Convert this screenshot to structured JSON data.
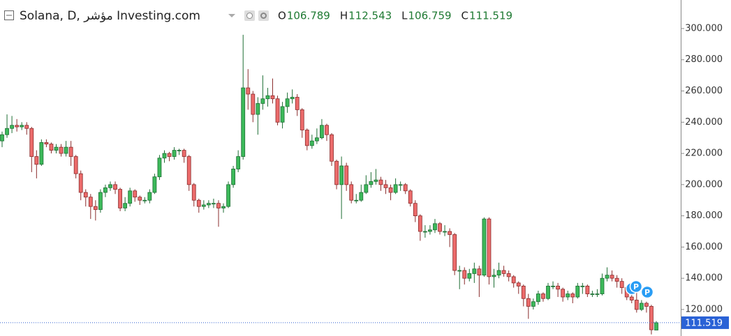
{
  "chart_data": {
    "type": "candlestick",
    "title": "Solana, D, مؤشر Investing.com",
    "ohlc_letters": [
      "O",
      "H",
      "L",
      "C"
    ],
    "up_color": "#3cb95a",
    "down_color": "#ec6b6b",
    "ylim": [
      103,
      318.3
    ],
    "yticks": [
      {
        "value": 120,
        "label": "120.000"
      },
      {
        "value": 140,
        "label": "140.000"
      },
      {
        "value": 160,
        "label": "160.000"
      },
      {
        "value": 180,
        "label": "180.000"
      },
      {
        "value": 200,
        "label": "200.000"
      },
      {
        "value": 220,
        "label": "220.000"
      },
      {
        "value": 240,
        "label": "240.000"
      },
      {
        "value": 260,
        "label": "260.000"
      },
      {
        "value": 280,
        "label": "280.000"
      },
      {
        "value": 300,
        "label": "300.000"
      }
    ],
    "events": [
      {
        "label": "I"
      },
      {
        "label": "P"
      },
      {
        "label": "P"
      }
    ],
    "ohlc": [
      [
        228,
        234,
        224,
        232
      ],
      [
        232,
        245,
        230,
        236
      ],
      [
        236,
        244,
        233,
        238
      ],
      [
        238,
        242,
        234,
        237
      ],
      [
        237,
        240,
        235,
        238
      ],
      [
        238,
        240,
        232,
        236
      ],
      [
        236,
        237,
        208,
        218
      ],
      [
        218,
        222,
        204,
        213
      ],
      [
        213,
        229,
        212,
        227
      ],
      [
        227,
        229,
        224,
        226
      ],
      [
        226,
        227,
        220,
        222
      ],
      [
        222,
        226,
        220,
        224
      ],
      [
        224,
        226,
        218,
        220
      ],
      [
        220,
        228,
        218,
        224
      ],
      [
        224,
        228,
        212,
        218
      ],
      [
        218,
        219,
        204,
        207
      ],
      [
        207,
        209,
        190,
        195
      ],
      [
        195,
        197,
        186,
        192
      ],
      [
        192,
        194,
        178,
        186
      ],
      [
        186,
        190,
        177,
        184
      ],
      [
        184,
        197,
        182,
        195
      ],
      [
        195,
        200,
        192,
        198
      ],
      [
        198,
        202,
        196,
        200
      ],
      [
        200,
        202,
        194,
        197
      ],
      [
        197,
        198,
        183,
        185
      ],
      [
        185,
        192,
        183,
        188
      ],
      [
        188,
        198,
        186,
        196
      ],
      [
        196,
        197,
        189,
        192
      ],
      [
        192,
        193,
        187,
        190
      ],
      [
        190,
        192,
        188,
        190
      ],
      [
        190,
        197,
        188,
        195
      ],
      [
        195,
        207,
        194,
        205
      ],
      [
        205,
        219,
        203,
        217
      ],
      [
        217,
        222,
        214,
        220
      ],
      [
        220,
        221,
        215,
        218
      ],
      [
        218,
        224,
        216,
        222
      ],
      [
        222,
        223,
        219,
        222
      ],
      [
        222,
        223,
        214,
        218
      ],
      [
        218,
        219,
        196,
        200
      ],
      [
        200,
        201,
        186,
        190
      ],
      [
        190,
        191,
        182,
        186
      ],
      [
        186,
        190,
        184,
        187
      ],
      [
        187,
        190,
        185,
        188
      ],
      [
        188,
        191,
        185,
        188
      ],
      [
        188,
        190,
        173,
        185
      ],
      [
        185,
        188,
        182,
        186
      ],
      [
        186,
        202,
        185,
        200
      ],
      [
        200,
        212,
        198,
        210
      ],
      [
        210,
        222,
        208,
        218
      ],
      [
        218,
        296,
        216,
        262
      ],
      [
        262,
        274,
        248,
        258
      ],
      [
        258,
        260,
        240,
        245
      ],
      [
        245,
        256,
        232,
        252
      ],
      [
        252,
        270,
        248,
        255
      ],
      [
        255,
        262,
        250,
        257
      ],
      [
        257,
        268,
        252,
        255
      ],
      [
        255,
        257,
        238,
        240
      ],
      [
        240,
        253,
        236,
        250
      ],
      [
        250,
        259,
        246,
        255
      ],
      [
        255,
        261,
        252,
        256
      ],
      [
        256,
        258,
        244,
        248
      ],
      [
        248,
        249,
        230,
        235
      ],
      [
        235,
        236,
        222,
        225
      ],
      [
        225,
        232,
        223,
        228
      ],
      [
        228,
        236,
        226,
        230
      ],
      [
        230,
        242,
        229,
        238
      ],
      [
        238,
        239,
        228,
        232
      ],
      [
        232,
        233,
        212,
        215
      ],
      [
        215,
        216,
        197,
        200
      ],
      [
        200,
        218,
        178,
        212
      ],
      [
        212,
        214,
        196,
        200
      ],
      [
        200,
        202,
        188,
        190
      ],
      [
        190,
        194,
        188,
        190
      ],
      [
        190,
        200,
        189,
        195
      ],
      [
        195,
        206,
        194,
        200
      ],
      [
        200,
        208,
        198,
        202
      ],
      [
        202,
        210,
        200,
        203
      ],
      [
        203,
        205,
        196,
        200
      ],
      [
        200,
        203,
        194,
        198
      ],
      [
        198,
        200,
        190,
        195
      ],
      [
        195,
        204,
        194,
        200
      ],
      [
        200,
        202,
        196,
        200
      ],
      [
        200,
        201,
        194,
        196
      ],
      [
        196,
        197,
        186,
        188
      ],
      [
        188,
        190,
        176,
        180
      ],
      [
        180,
        181,
        164,
        170
      ],
      [
        170,
        174,
        166,
        170
      ],
      [
        170,
        174,
        168,
        171
      ],
      [
        171,
        178,
        169,
        175
      ],
      [
        175,
        176,
        168,
        170
      ],
      [
        170,
        174,
        167,
        170
      ],
      [
        170,
        172,
        160,
        168
      ],
      [
        168,
        169,
        142,
        145
      ],
      [
        145,
        148,
        133,
        145
      ],
      [
        145,
        147,
        136,
        140
      ],
      [
        140,
        146,
        138,
        143
      ],
      [
        143,
        150,
        137,
        146
      ],
      [
        146,
        148,
        128,
        142
      ],
      [
        142,
        179,
        141,
        178
      ],
      [
        178,
        179,
        136,
        141
      ],
      [
        141,
        146,
        134,
        142
      ],
      [
        142,
        150,
        140,
        145
      ],
      [
        145,
        148,
        141,
        143
      ],
      [
        143,
        145,
        138,
        141
      ],
      [
        141,
        142,
        134,
        137
      ],
      [
        137,
        138,
        130,
        135
      ],
      [
        135,
        136,
        122,
        127
      ],
      [
        127,
        130,
        114,
        122
      ],
      [
        122,
        127,
        120,
        125
      ],
      [
        125,
        132,
        123,
        130
      ],
      [
        130,
        131,
        125,
        127
      ],
      [
        127,
        137,
        126,
        135
      ],
      [
        135,
        138,
        133,
        135
      ],
      [
        135,
        137,
        128,
        133
      ],
      [
        133,
        134,
        125,
        128
      ],
      [
        128,
        132,
        126,
        130
      ],
      [
        130,
        131,
        124,
        128
      ],
      [
        128,
        137,
        127,
        135
      ],
      [
        135,
        137,
        130,
        135
      ],
      [
        135,
        136,
        128,
        130
      ],
      [
        130,
        132,
        128,
        130
      ],
      [
        130,
        133,
        128,
        130
      ],
      [
        130,
        143,
        129,
        140
      ],
      [
        140,
        147,
        138,
        142
      ],
      [
        142,
        145,
        138,
        140
      ],
      [
        140,
        142,
        134,
        138
      ],
      [
        138,
        140,
        130,
        134
      ],
      [
        134,
        135,
        126,
        128
      ],
      [
        128,
        130,
        124,
        126
      ],
      [
        126,
        135,
        118,
        120
      ],
      [
        120,
        126,
        119,
        124
      ],
      [
        124,
        125,
        118,
        122
      ],
      [
        122,
        123,
        104,
        107
      ],
      [
        106.789,
        112.543,
        106.759,
        111.519
      ]
    ]
  }
}
